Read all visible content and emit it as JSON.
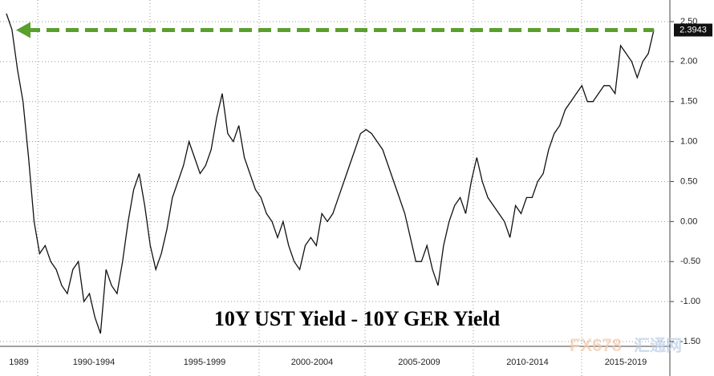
{
  "chart_data": {
    "type": "line",
    "title": "10Y UST Yield - 10Y GER Yield",
    "periods": [
      "1989",
      "1990-1994",
      "1995-1999",
      "2000-2004",
      "2005-2009",
      "2010-2014",
      "2015-2019"
    ],
    "series": [
      {
        "name": "10Y UST Yield - 10Y GER Yield",
        "color": "#111111",
        "values": [
          2.6,
          2.4,
          1.9,
          1.5,
          0.8,
          0.0,
          -0.4,
          -0.3,
          -0.5,
          -0.6,
          -0.8,
          -0.9,
          -0.6,
          -0.5,
          -1.0,
          -0.9,
          -1.2,
          -1.4,
          -0.6,
          -0.8,
          -0.9,
          -0.5,
          0.0,
          0.4,
          0.6,
          0.2,
          -0.3,
          -0.6,
          -0.4,
          -0.1,
          0.3,
          0.5,
          0.7,
          1.0,
          0.8,
          0.6,
          0.7,
          0.9,
          1.3,
          1.6,
          1.1,
          1.0,
          1.2,
          0.8,
          0.6,
          0.4,
          0.3,
          0.1,
          0.0,
          -0.2,
          0.0,
          -0.3,
          -0.5,
          -0.6,
          -0.3,
          -0.2,
          -0.3,
          0.1,
          0.0,
          0.1,
          0.3,
          0.5,
          0.7,
          0.9,
          1.1,
          1.15,
          1.1,
          1.0,
          0.9,
          0.7,
          0.5,
          0.3,
          0.1,
          -0.2,
          -0.5,
          -0.5,
          -0.3,
          -0.6,
          -0.8,
          -0.3,
          0.0,
          0.2,
          0.3,
          0.1,
          0.5,
          0.8,
          0.5,
          0.3,
          0.2,
          0.1,
          0.0,
          -0.2,
          0.2,
          0.1,
          0.3,
          0.3,
          0.5,
          0.6,
          0.9,
          1.1,
          1.2,
          1.4,
          1.5,
          1.6,
          1.7,
          1.5,
          1.5,
          1.6,
          1.7,
          1.7,
          1.6,
          2.2,
          2.1,
          2.0,
          1.8,
          2.0,
          2.1,
          2.3943
        ],
        "last_label": "2.3943"
      }
    ],
    "ylim": [
      -1.56,
      2.77
    ],
    "yticks": [
      {
        "value": -1.5,
        "label": "-1.50"
      },
      {
        "value": -1,
        "label": "-1.00"
      },
      {
        "value": -0.5,
        "label": "-0.50"
      },
      {
        "value": 0,
        "label": "0.00"
      },
      {
        "value": 0.5,
        "label": "0.50"
      },
      {
        "value": 1,
        "label": "1.00"
      },
      {
        "value": 1.5,
        "label": "1.50"
      },
      {
        "value": 2,
        "label": "2.00"
      },
      {
        "value": 2.5,
        "label": "2.50"
      }
    ],
    "arrow_color": "#5aa02c",
    "grid": true,
    "watermark": [
      "FX678",
      "汇通网"
    ]
  }
}
